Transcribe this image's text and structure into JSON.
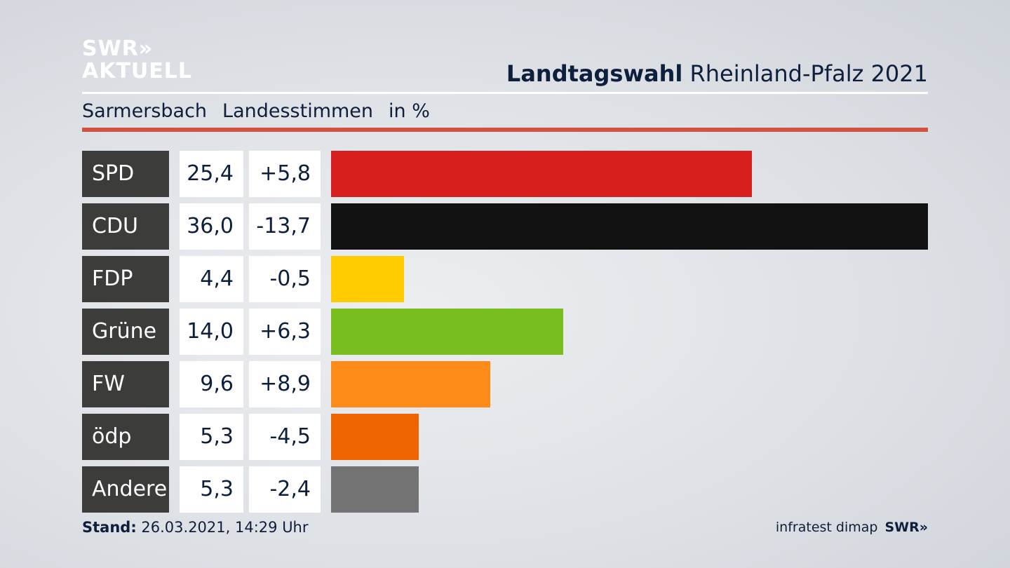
{
  "chart_data": {
    "type": "bar",
    "logo_line1": "SWR»",
    "logo_line2": "AKTUELL",
    "title_bold": "Landtagswahl",
    "title": "Rheinland-Pfalz 2021",
    "subtitle": [
      "Sarmersbach",
      "Landesstimmen",
      "in %"
    ],
    "categories": [
      "SPD",
      "CDU",
      "FDP",
      "Grüne",
      "FW",
      "ödp",
      "Andere"
    ],
    "values": [
      25.4,
      36.0,
      4.4,
      14.0,
      9.6,
      5.3,
      5.3
    ],
    "value_labels": [
      "25,4",
      "36,0",
      "4,4",
      "14,0",
      "9,6",
      "5,3",
      "5,3"
    ],
    "changes": [
      5.8,
      -13.7,
      -0.5,
      6.3,
      8.9,
      -4.5,
      -2.4
    ],
    "change_labels": [
      "+5,8",
      "-13,7",
      "-0,5",
      "+6,3",
      "+8,9",
      "-4,5",
      "-2,4"
    ],
    "colors": [
      "#d71f1f",
      "#121212",
      "#fecc00",
      "#78be1e",
      "#fc8c17",
      "#ee6400",
      "#737374"
    ],
    "footer_label": "Stand:",
    "footer_date": "26.03.2021, 14:29 Uhr",
    "source": "infratest dimap",
    "source_logo": "SWR»"
  }
}
